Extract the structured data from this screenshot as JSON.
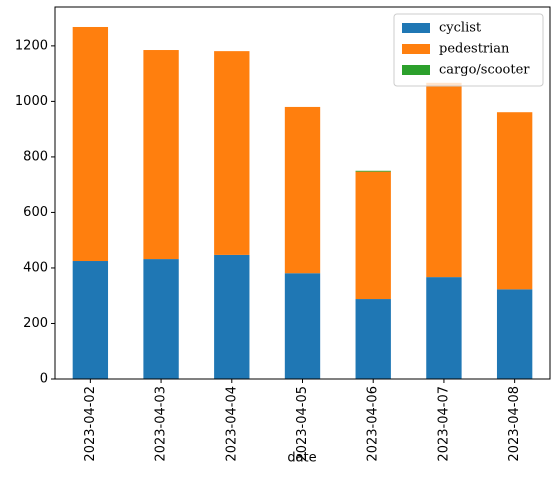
{
  "chart_data": {
    "type": "stacked-bar",
    "categories": [
      "2023-04-02",
      "2023-04-03",
      "2023-04-04",
      "2023-04-05",
      "2023-04-06",
      "2023-04-07",
      "2023-04-08"
    ],
    "series": [
      {
        "name": "cyclist",
        "color": "#1f77b4",
        "values": [
          425,
          432,
          447,
          381,
          288,
          367,
          323
        ]
      },
      {
        "name": "pedestrian",
        "color": "#ff7f0e",
        "values": [
          843,
          753,
          734,
          599,
          459,
          700,
          638
        ]
      },
      {
        "name": "cargo/scooter",
        "color": "#2ca02c",
        "values": [
          0,
          0,
          0,
          0,
          3,
          0,
          0
        ]
      }
    ],
    "xlabel": "date",
    "ylim": [
      0,
      1340
    ],
    "yticks": [
      0,
      200,
      400,
      600,
      800,
      1000,
      1200
    ],
    "legend": "upper right"
  }
}
